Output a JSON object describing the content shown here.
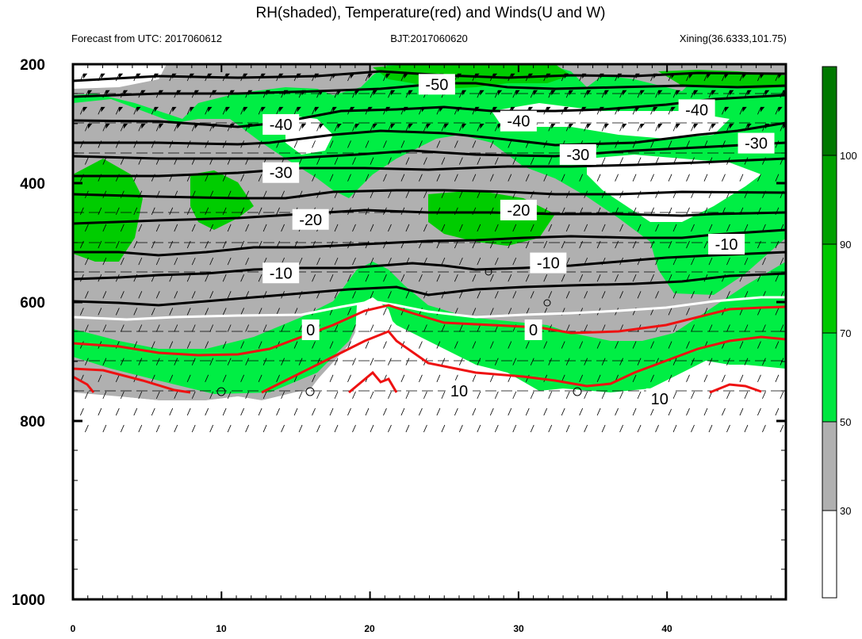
{
  "chart_data": {
    "type": "contour",
    "title": "RH(shaded), Temperature(red) and Winds(U and W)",
    "subtitle_left": "Forecast from UTC: 2017060612",
    "subtitle_center": "BJT:2017060620",
    "subtitle_right": "Xining(36.6333,101.75)",
    "xlim": [
      0,
      48
    ],
    "ylim": [
      1000,
      200
    ],
    "x_ticks": [
      "0",
      "10",
      "20",
      "30",
      "40"
    ],
    "y_ticks": [
      "200",
      "400",
      "600",
      "800",
      "1000"
    ],
    "colorbar": {
      "levels": [
        "30",
        "50",
        "70",
        "90",
        "100"
      ],
      "colors": [
        "#ffffff",
        "#b0b0b0",
        "#00e640",
        "#00c800",
        "#00a000",
        "#007800"
      ]
    },
    "colors": {
      "rh_below_30": "#ffffff",
      "rh_30_50": "#b0b0b0",
      "rh_50_70": "#00ee44",
      "rh_70_90": "#00cc00",
      "rh_90_100": "#00a000",
      "rh_above_100": "#007800",
      "temp_negative": "#000000",
      "temp_zero": "#ffffff",
      "temp_positive": "#ee1111"
    },
    "temperature_labels": [
      {
        "text": "-50",
        "x": 24.5,
        "y": 230
      },
      {
        "text": "-40",
        "x": 14,
        "y": 290
      },
      {
        "text": "-40",
        "x": 30,
        "y": 285
      },
      {
        "text": "-40",
        "x": 42,
        "y": 268
      },
      {
        "text": "-30",
        "x": 14,
        "y": 362
      },
      {
        "text": "-30",
        "x": 34,
        "y": 335
      },
      {
        "text": "-30",
        "x": 46,
        "y": 318
      },
      {
        "text": "-20",
        "x": 16,
        "y": 432
      },
      {
        "text": "-20",
        "x": 30,
        "y": 418
      },
      {
        "text": "-10",
        "x": 14,
        "y": 512
      },
      {
        "text": "-10",
        "x": 32,
        "y": 497
      },
      {
        "text": "-10",
        "x": 44,
        "y": 469
      },
      {
        "text": "0",
        "x": 16,
        "y": 597
      },
      {
        "text": "0",
        "x": 31,
        "y": 597
      },
      {
        "text": "10",
        "x": 26,
        "y": 688
      },
      {
        "text": "10",
        "x": 39.5,
        "y": 700
      }
    ]
  }
}
